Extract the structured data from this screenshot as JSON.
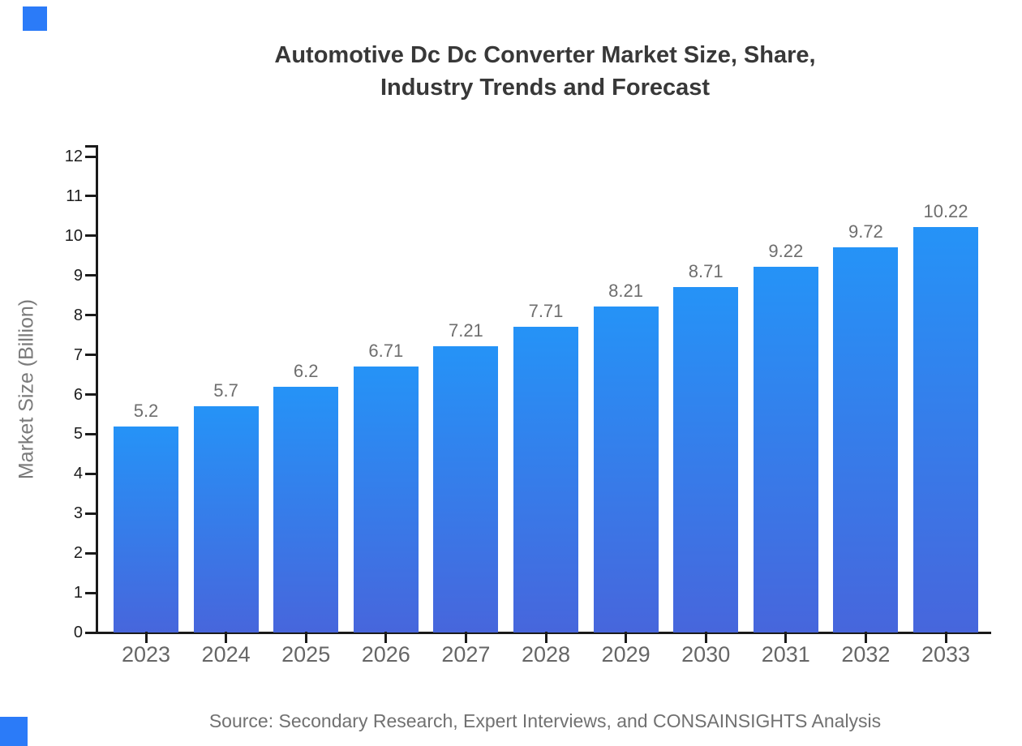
{
  "page": {
    "title_line1": "Automotive Dc Dc Converter Market Size, Share,",
    "title_line2": "Industry Trends and Forecast",
    "source_note": "Source: Secondary Research, Expert Interviews, and CONSAINSIGHTS Analysis"
  },
  "chart_data": {
    "type": "bar",
    "title": "Automotive Dc Dc Converter Market Size, Share, Industry Trends and Forecast",
    "categories": [
      "2023",
      "2024",
      "2025",
      "2026",
      "2027",
      "2028",
      "2029",
      "2030",
      "2031",
      "2032",
      "2033"
    ],
    "values": [
      5.2,
      5.7,
      6.2,
      6.71,
      7.21,
      7.71,
      8.21,
      8.71,
      9.22,
      9.72,
      10.22
    ],
    "value_labels": [
      "5.2",
      "5.7",
      "6.2",
      "6.71",
      "7.21",
      "7.71",
      "8.21",
      "8.71",
      "9.22",
      "9.72",
      "10.22"
    ],
    "xlabel": "",
    "ylabel": "Market Size (Billion)",
    "ylim": [
      0,
      12
    ],
    "yticks": [
      0,
      1,
      2,
      3,
      4,
      5,
      6,
      7,
      8,
      9,
      10,
      11,
      12
    ],
    "grid": false,
    "legend": false,
    "bar_style": "vertical gradient, square corners",
    "source": "Source: Secondary Research, Expert Interviews, and CONSAINSIGHTS Analysis"
  },
  "colors": {
    "background": "#ffffff",
    "axis": "#1a1a1a",
    "title_text": "#383838",
    "tick_label": "#1c1c1c",
    "category_label": "#666666",
    "value_label": "#6e6e6e",
    "axis_title": "#7a7a7a",
    "source_text": "#717171",
    "bar_gradient_top": "#2593F7",
    "bar_gradient_bottom": "#4766DC",
    "brand_square": "#2B7BF8"
  }
}
